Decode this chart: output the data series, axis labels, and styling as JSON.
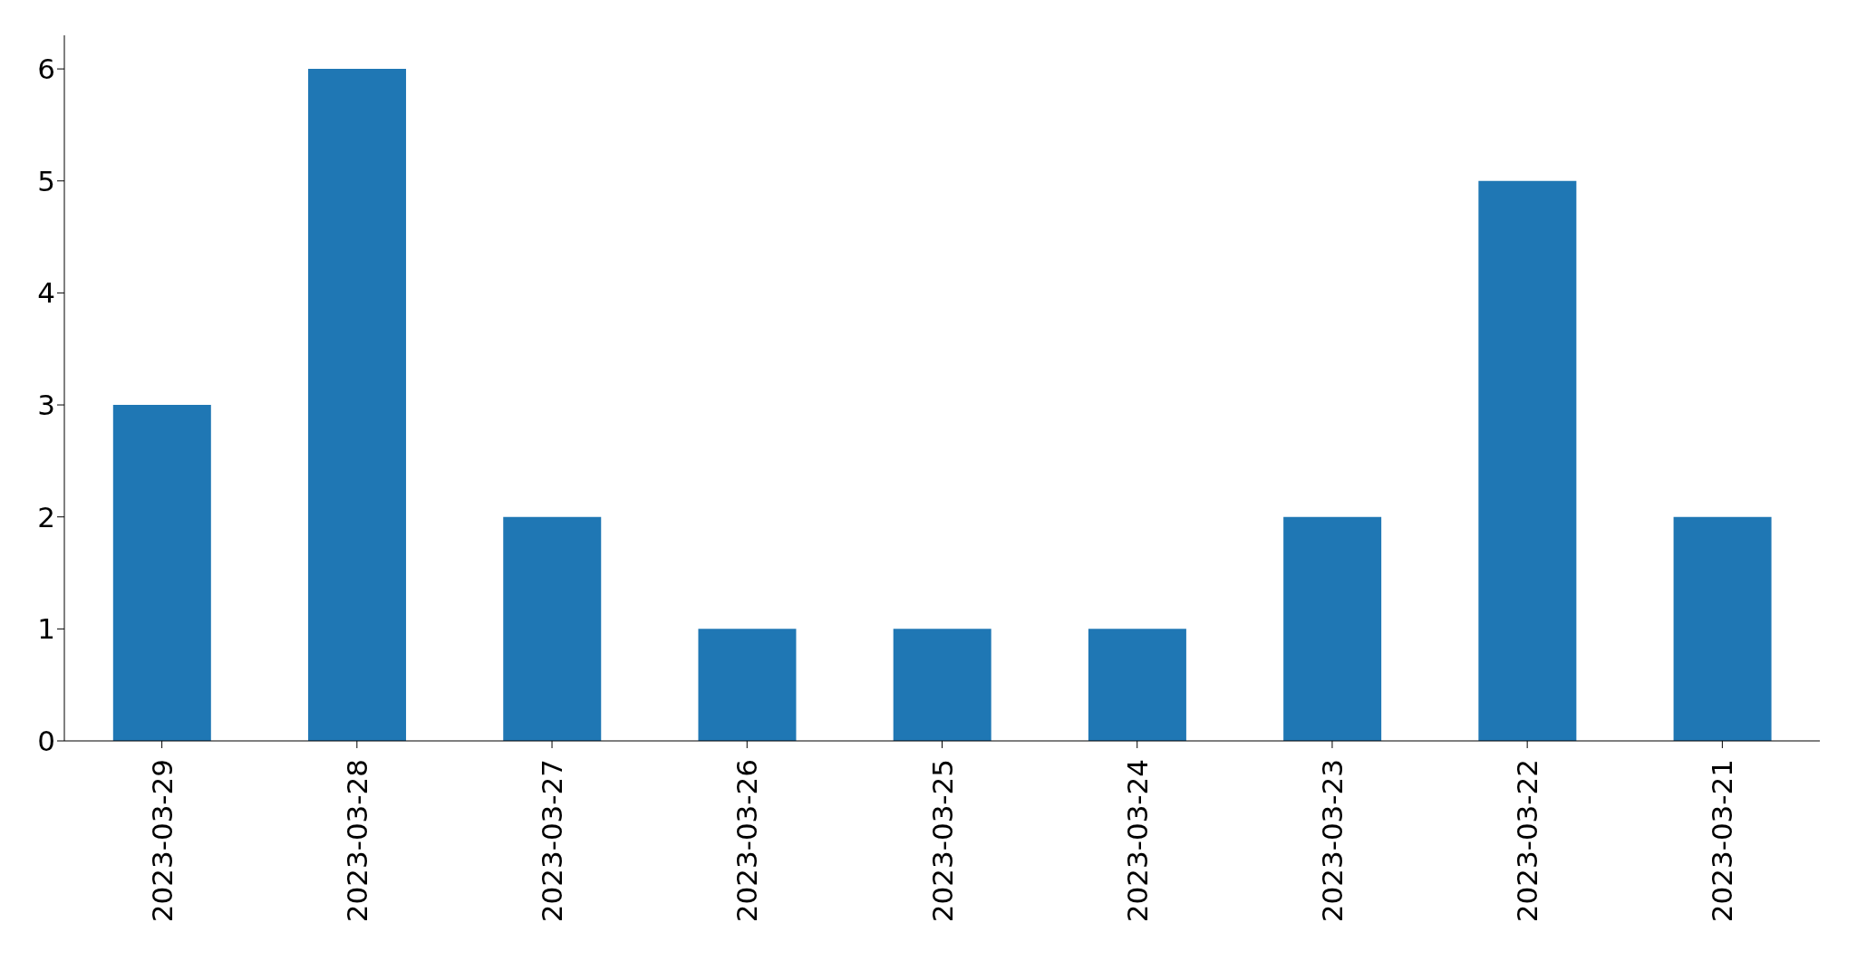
{
  "chart_data": {
    "type": "bar",
    "categories": [
      "2023-03-29",
      "2023-03-28",
      "2023-03-27",
      "2023-03-26",
      "2023-03-25",
      "2023-03-24",
      "2023-03-23",
      "2023-03-22",
      "2023-03-21"
    ],
    "values": [
      3,
      6,
      2,
      1,
      1,
      1,
      2,
      5,
      2
    ],
    "color": "#1f77b4",
    "ylim": [
      0,
      6.3
    ],
    "yticks": [
      0,
      1,
      2,
      3,
      4,
      5,
      6
    ],
    "grid": false,
    "legend": false
  }
}
